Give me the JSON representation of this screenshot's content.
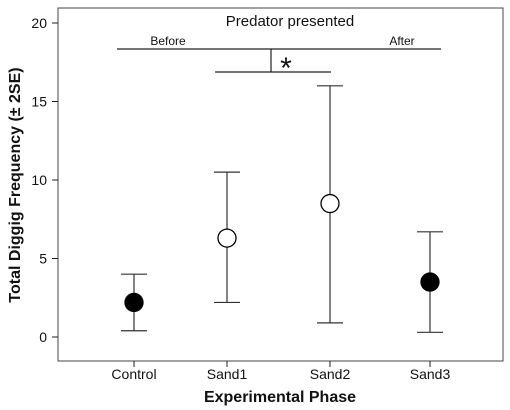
{
  "chart_data": {
    "type": "scatter",
    "title": "",
    "xlabel": "Experimental Phase",
    "ylabel": "Total Diggig Frequency (± 2SE)",
    "categories": [
      "Control",
      "Sand1",
      "Sand2",
      "Sand3"
    ],
    "ylim": [
      0,
      20
    ],
    "yticks": [
      0,
      5,
      10,
      15,
      20
    ],
    "grid": false,
    "points": [
      {
        "category": "Control",
        "mean": 2.2,
        "lower": 0.4,
        "upper": 4.0,
        "marker": "filled"
      },
      {
        "category": "Sand1",
        "mean": 6.3,
        "lower": 2.2,
        "upper": 10.5,
        "marker": "open"
      },
      {
        "category": "Sand2",
        "mean": 8.5,
        "lower": 0.9,
        "upper": 16.0,
        "marker": "open"
      },
      {
        "category": "Sand3",
        "mean": 3.5,
        "lower": 0.3,
        "upper": 6.7,
        "marker": "filled"
      }
    ],
    "annotations": {
      "predator_label": "Predator presented",
      "before_label": "Before",
      "after_label": "After",
      "significance_label": "*"
    }
  }
}
